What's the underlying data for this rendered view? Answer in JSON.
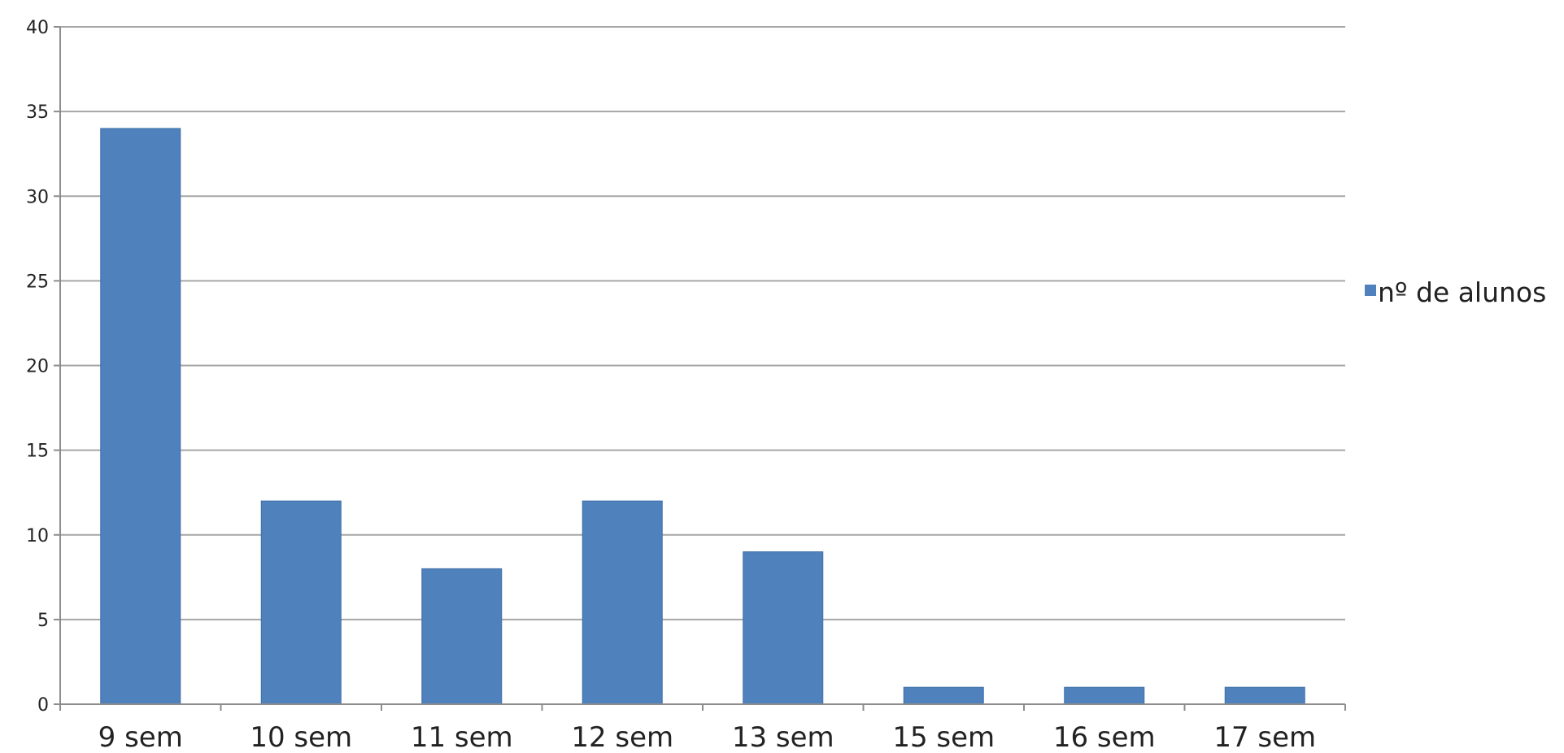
{
  "chart_data": {
    "type": "bar",
    "categories": [
      "9 sem",
      "10 sem",
      "11 sem",
      "12 sem",
      "13 sem",
      "15 sem",
      "16 sem",
      "17 sem"
    ],
    "series": [
      {
        "name": "nº de alunos",
        "values": [
          34,
          12,
          8,
          12,
          9,
          1,
          1,
          1
        ],
        "color": "#4f81bd"
      }
    ],
    "ylim": [
      0,
      40
    ],
    "yticks": [
      0,
      5,
      10,
      15,
      20,
      25,
      30,
      35,
      40
    ],
    "grid": true,
    "legend_position": "right",
    "title": "",
    "xlabel": "",
    "ylabel": ""
  }
}
